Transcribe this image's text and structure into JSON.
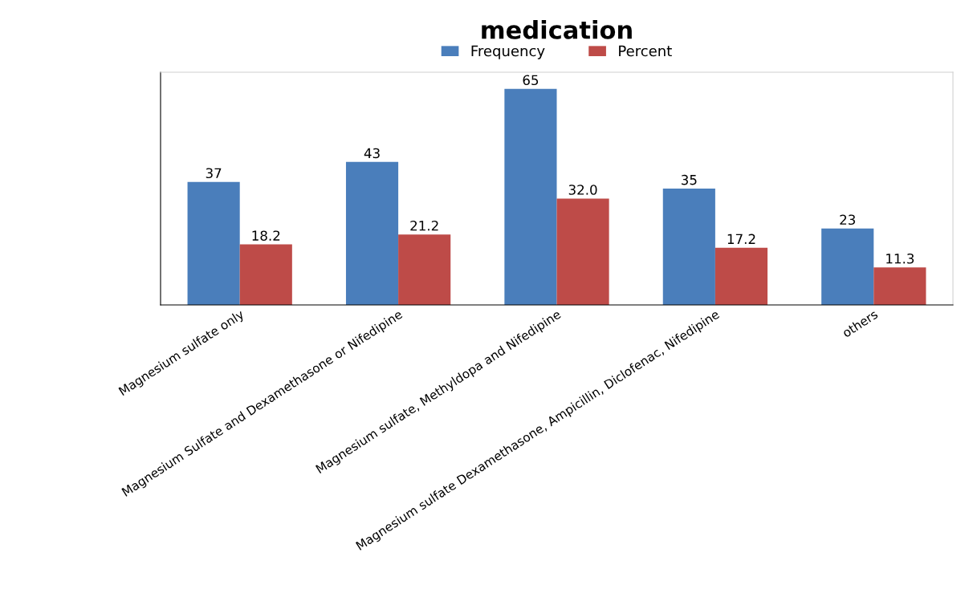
{
  "chart_data": {
    "type": "bar",
    "title": "medication",
    "categories": [
      "Magnesium sulfate only",
      "Magnesium Sulfate and Dexamethasone or Nifedipine",
      "Magnesium sulfate, Methyldopa and Nifedipine",
      "Magnesium sulfate Dexamethasone, Ampicillin, Diclofenac, Nifedipine",
      "others"
    ],
    "series": [
      {
        "name": "Frequency",
        "color": "#4a7ebb",
        "values": [
          37,
          43,
          65,
          35,
          23
        ]
      },
      {
        "name": "Percent",
        "color": "#be4b48",
        "values": [
          18.2,
          21.2,
          32.0,
          17.2,
          11.3
        ],
        "value_labels": [
          "18.2",
          "21.2",
          "32.0",
          "17.2",
          "11.3"
        ]
      }
    ],
    "ylim": [
      0,
      70
    ],
    "data_labels": true,
    "legend": "top",
    "grid": false,
    "tick_labels": "x"
  }
}
